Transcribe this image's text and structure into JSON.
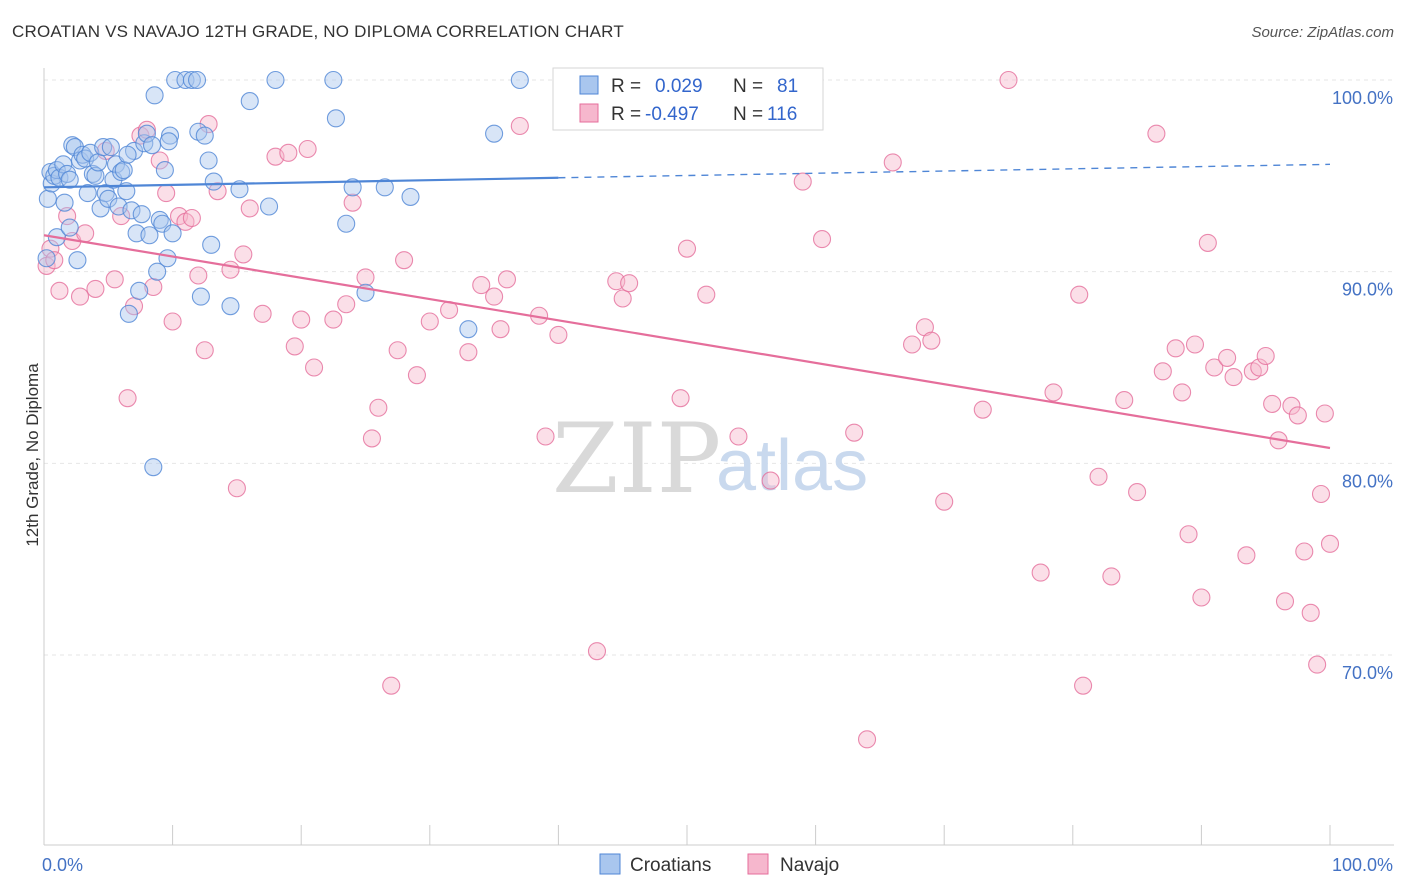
{
  "title": "CROATIAN VS NAVAJO 12TH GRADE, NO DIPLOMA CORRELATION CHART",
  "source": "Source: ZipAtlas.com",
  "watermark": {
    "zip": "ZIP",
    "atlas": "atlas"
  },
  "chart_data": {
    "type": "scatter",
    "ylabel": "12th Grade, No Diploma",
    "xlabel": "",
    "xlim": [
      0,
      100
    ],
    "ylim": [
      60,
      102
    ],
    "x_tick_labels": [
      "0.0%",
      "100.0%"
    ],
    "y_ticks": [
      {
        "value": 100,
        "label": "100.0%"
      },
      {
        "value": 90,
        "label": "90.0%"
      },
      {
        "value": 80,
        "label": "80.0%"
      },
      {
        "value": 70,
        "label": "70.0%"
      }
    ],
    "grid": true,
    "legend": {
      "placement": "top-center",
      "entries": [
        {
          "r_label": "R =",
          "r_value": "0.029",
          "n_label": "N =",
          "n_value": "81"
        },
        {
          "r_label": "R =",
          "r_value": "-0.497",
          "n_label": "N =",
          "n_value": "116"
        }
      ]
    },
    "series": [
      {
        "name": "Croatians",
        "color": "#4f86d6",
        "fill": "#a9c6ee",
        "trend": {
          "x0": 0,
          "y0": 94.4,
          "x1": 40,
          "y1": 94.9,
          "x_dashed_end": 100,
          "y_dashed_end": 95.6
        },
        "points": [
          [
            0.3,
            93.8
          ],
          [
            0.5,
            95.2
          ],
          [
            0.6,
            94.6
          ],
          [
            0.8,
            95.0
          ],
          [
            1.0,
            95.3
          ],
          [
            1.2,
            94.9
          ],
          [
            1.5,
            95.6
          ],
          [
            1.6,
            93.6
          ],
          [
            1.8,
            95.1
          ],
          [
            2.0,
            94.8
          ],
          [
            2.2,
            96.6
          ],
          [
            2.4,
            96.5
          ],
          [
            2.6,
            90.6
          ],
          [
            2.8,
            95.8
          ],
          [
            3.0,
            96.1
          ],
          [
            3.2,
            95.9
          ],
          [
            3.4,
            94.1
          ],
          [
            3.6,
            96.2
          ],
          [
            3.8,
            95.1
          ],
          [
            4.0,
            95.0
          ],
          [
            4.2,
            95.7
          ],
          [
            4.4,
            93.3
          ],
          [
            4.6,
            96.5
          ],
          [
            4.8,
            94.1
          ],
          [
            5.0,
            93.8
          ],
          [
            5.2,
            96.5
          ],
          [
            5.4,
            94.8
          ],
          [
            5.6,
            95.6
          ],
          [
            5.8,
            93.4
          ],
          [
            6.0,
            95.2
          ],
          [
            6.2,
            95.3
          ],
          [
            6.4,
            94.2
          ],
          [
            6.6,
            87.8
          ],
          [
            6.8,
            93.2
          ],
          [
            7.0,
            96.3
          ],
          [
            7.2,
            92.0
          ],
          [
            7.4,
            89.0
          ],
          [
            7.6,
            93.0
          ],
          [
            7.8,
            96.7
          ],
          [
            8.0,
            97.2
          ],
          [
            8.2,
            91.9
          ],
          [
            8.4,
            96.6
          ],
          [
            8.5,
            79.8
          ],
          [
            8.6,
            99.2
          ],
          [
            8.8,
            90.0
          ],
          [
            9.0,
            92.7
          ],
          [
            9.2,
            92.5
          ],
          [
            9.4,
            95.3
          ],
          [
            9.6,
            90.7
          ],
          [
            9.8,
            97.1
          ],
          [
            10.0,
            92.0
          ],
          [
            10.2,
            100.0
          ],
          [
            11.0,
            100.0
          ],
          [
            11.5,
            100.0
          ],
          [
            11.9,
            100.0
          ],
          [
            12.0,
            97.3
          ],
          [
            12.2,
            88.7
          ],
          [
            12.5,
            97.1
          ],
          [
            12.8,
            95.8
          ],
          [
            13.0,
            91.4
          ],
          [
            13.2,
            94.7
          ],
          [
            14.5,
            88.2
          ],
          [
            15.2,
            94.3
          ],
          [
            16.0,
            98.9
          ],
          [
            17.5,
            93.4
          ],
          [
            18.0,
            100.0
          ],
          [
            22.5,
            100.0
          ],
          [
            22.7,
            98.0
          ],
          [
            23.5,
            92.5
          ],
          [
            24.0,
            94.4
          ],
          [
            25.0,
            88.9
          ],
          [
            26.5,
            94.4
          ],
          [
            28.5,
            93.9
          ],
          [
            33.0,
            87.0
          ],
          [
            35.0,
            97.2
          ],
          [
            37.0,
            100.0
          ],
          [
            1.0,
            91.8
          ],
          [
            2.0,
            92.3
          ],
          [
            6.5,
            96.1
          ],
          [
            9.7,
            96.8
          ],
          [
            0.2,
            90.7
          ]
        ]
      },
      {
        "name": "Navajo",
        "color": "#e56e9b",
        "fill": "#f6b7cd",
        "trend": {
          "x0": 0,
          "y0": 91.9,
          "x1": 100,
          "y1": 80.8
        },
        "points": [
          [
            0.2,
            90.3
          ],
          [
            0.5,
            91.2
          ],
          [
            0.8,
            90.6
          ],
          [
            1.2,
            89.0
          ],
          [
            1.8,
            92.9
          ],
          [
            2.2,
            91.6
          ],
          [
            2.8,
            88.7
          ],
          [
            3.2,
            92.0
          ],
          [
            4.0,
            89.1
          ],
          [
            4.8,
            96.3
          ],
          [
            5.5,
            89.6
          ],
          [
            6.0,
            92.9
          ],
          [
            6.5,
            83.4
          ],
          [
            7.0,
            88.2
          ],
          [
            7.5,
            97.1
          ],
          [
            8.0,
            97.4
          ],
          [
            8.5,
            89.2
          ],
          [
            9.0,
            95.8
          ],
          [
            9.5,
            94.1
          ],
          [
            10.0,
            87.4
          ],
          [
            10.5,
            92.9
          ],
          [
            11.0,
            92.6
          ],
          [
            11.5,
            92.8
          ],
          [
            12.0,
            89.8
          ],
          [
            12.5,
            85.9
          ],
          [
            12.8,
            97.7
          ],
          [
            13.5,
            94.2
          ],
          [
            14.5,
            90.1
          ],
          [
            15.0,
            78.7
          ],
          [
            15.5,
            90.9
          ],
          [
            16.0,
            93.3
          ],
          [
            17.0,
            87.8
          ],
          [
            18.0,
            96.0
          ],
          [
            19.0,
            96.2
          ],
          [
            19.5,
            86.1
          ],
          [
            20.0,
            87.5
          ],
          [
            20.5,
            96.4
          ],
          [
            21.0,
            85.0
          ],
          [
            22.5,
            87.5
          ],
          [
            23.5,
            88.3
          ],
          [
            24.0,
            93.6
          ],
          [
            25.0,
            89.7
          ],
          [
            25.5,
            81.3
          ],
          [
            26.0,
            82.9
          ],
          [
            27.0,
            68.4
          ],
          [
            27.5,
            85.9
          ],
          [
            28.0,
            90.6
          ],
          [
            29.0,
            84.6
          ],
          [
            30.0,
            87.4
          ],
          [
            31.5,
            88.0
          ],
          [
            33.0,
            85.8
          ],
          [
            34.0,
            89.3
          ],
          [
            35.0,
            88.7
          ],
          [
            35.5,
            87.0
          ],
          [
            36.0,
            89.6
          ],
          [
            37.0,
            97.6
          ],
          [
            38.5,
            87.7
          ],
          [
            39.0,
            81.4
          ],
          [
            40.0,
            86.7
          ],
          [
            43.0,
            70.2
          ],
          [
            44.5,
            89.5
          ],
          [
            45.0,
            88.6
          ],
          [
            45.5,
            89.4
          ],
          [
            47.0,
            100.0
          ],
          [
            49.5,
            83.4
          ],
          [
            50.0,
            91.2
          ],
          [
            51.5,
            88.8
          ],
          [
            53.0,
            100.0
          ],
          [
            54.0,
            81.4
          ],
          [
            55.0,
            100.0
          ],
          [
            56.5,
            79.1
          ],
          [
            59.0,
            94.7
          ],
          [
            60.5,
            91.7
          ],
          [
            63.0,
            81.6
          ],
          [
            64.0,
            65.6
          ],
          [
            66.0,
            95.7
          ],
          [
            67.5,
            86.2
          ],
          [
            68.5,
            87.1
          ],
          [
            69.0,
            86.4
          ],
          [
            70.0,
            78.0
          ],
          [
            73.0,
            82.8
          ],
          [
            75.0,
            100.0
          ],
          [
            77.5,
            74.3
          ],
          [
            78.5,
            83.7
          ],
          [
            80.5,
            88.8
          ],
          [
            80.8,
            68.4
          ],
          [
            82.0,
            79.3
          ],
          [
            83.0,
            74.1
          ],
          [
            84.0,
            83.3
          ],
          [
            85.0,
            78.5
          ],
          [
            86.5,
            97.2
          ],
          [
            87.0,
            84.8
          ],
          [
            88.0,
            86.0
          ],
          [
            88.5,
            83.7
          ],
          [
            89.0,
            76.3
          ],
          [
            89.5,
            86.2
          ],
          [
            90.0,
            73.0
          ],
          [
            90.5,
            91.5
          ],
          [
            91.0,
            85.0
          ],
          [
            92.0,
            85.5
          ],
          [
            92.5,
            84.5
          ],
          [
            93.5,
            75.2
          ],
          [
            94.0,
            84.8
          ],
          [
            94.5,
            85.0
          ],
          [
            95.0,
            85.6
          ],
          [
            95.5,
            83.1
          ],
          [
            96.0,
            81.2
          ],
          [
            96.5,
            72.8
          ],
          [
            97.0,
            83.0
          ],
          [
            97.5,
            82.5
          ],
          [
            98.0,
            75.4
          ],
          [
            98.5,
            72.2
          ],
          [
            99.0,
            69.5
          ],
          [
            99.3,
            78.4
          ],
          [
            99.6,
            82.6
          ],
          [
            100.0,
            75.8
          ]
        ]
      }
    ]
  }
}
